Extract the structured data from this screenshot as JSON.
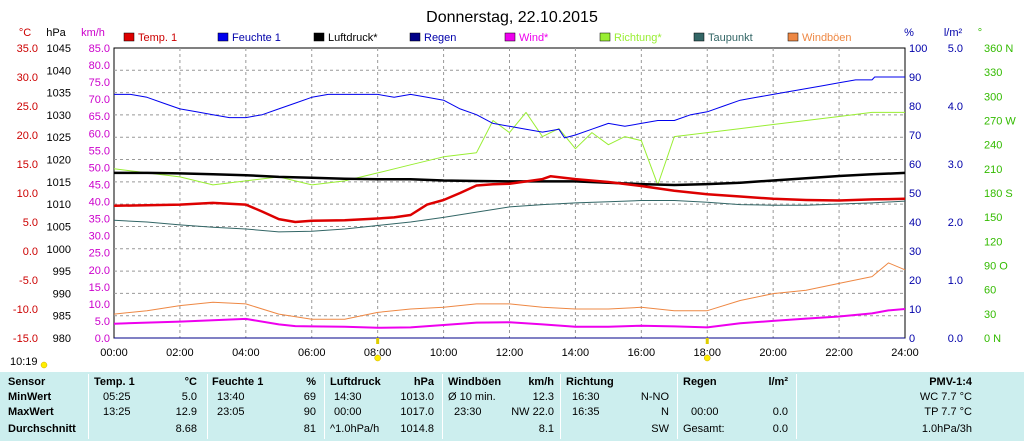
{
  "chart_data": {
    "type": "line",
    "title": "Donnerstag, 22.10.2015",
    "x_ticks": [
      "00:00",
      "02:00",
      "04:00",
      "06:00",
      "08:00",
      "10:00",
      "12:00",
      "14:00",
      "16:00",
      "18:00",
      "20:00",
      "22:00",
      "24:00"
    ],
    "xlim": [
      0,
      24
    ],
    "grid": true,
    "legend_position": "top",
    "axes": {
      "temp": {
        "unit": "°C",
        "ticks": [
          "35.0",
          "30.0",
          "25.0",
          "20.0",
          "15.0",
          "10.0",
          "5.0",
          "0.0",
          "-5.0",
          "-10.0",
          "-15.0"
        ],
        "ylim": [
          -15,
          35
        ],
        "color": "#cc0000"
      },
      "press": {
        "unit": "hPa",
        "ticks": [
          "1045",
          "1040",
          "1035",
          "1030",
          "1025",
          "1020",
          "1015",
          "1010",
          "1005",
          "1000",
          "995",
          "990",
          "985",
          "980"
        ],
        "ylim": [
          980,
          1045
        ],
        "color": "#000000"
      },
      "wind": {
        "unit": "km/h",
        "ticks": [
          "85.0",
          "80.0",
          "75.0",
          "70.0",
          "65.0",
          "60.0",
          "55.0",
          "50.0",
          "45.0",
          "40.0",
          "35.0",
          "30.0",
          "25.0",
          "20.0",
          "15.0",
          "10.0",
          "5.0",
          "0.0"
        ],
        "ylim": [
          0,
          85
        ],
        "color": "#cc00cc"
      },
      "hum": {
        "unit": "%",
        "ticks": [
          "100",
          "90",
          "80",
          "70",
          "60",
          "50",
          "40",
          "30",
          "20",
          "10",
          "0"
        ],
        "ylim": [
          0,
          100
        ],
        "color": "#0000aa"
      },
      "rain": {
        "unit": "l/m²",
        "ticks": [
          "5.0",
          "4.0",
          "3.0",
          "2.0",
          "1.0",
          "0.0"
        ],
        "ylim": [
          0,
          5
        ],
        "color": "#0000aa"
      },
      "dir": {
        "unit": "°",
        "ticks": [
          "360 N",
          "330",
          "300",
          "270 W",
          "240",
          "210",
          "180 S",
          "150",
          "120",
          "90 O",
          "60",
          "30",
          "0 N"
        ],
        "ylim": [
          0,
          360
        ],
        "color": "#33bb00"
      }
    },
    "series": [
      {
        "name": "Temp. 1",
        "axis": "temp",
        "color": "#dd0000",
        "width": 2.5,
        "x": [
          0,
          1,
          2,
          3,
          4,
          4.5,
          5,
          5.5,
          6,
          7,
          8,
          8.5,
          9,
          9.5,
          10,
          10.5,
          11,
          11.5,
          12,
          13,
          13.25,
          14,
          15,
          16,
          17,
          18,
          19,
          20,
          21,
          22,
          23,
          24
        ],
        "y": [
          7.8,
          7.9,
          8.0,
          8.3,
          8.0,
          6.8,
          5.5,
          5.0,
          5.2,
          5.3,
          5.6,
          5.8,
          6.2,
          8.0,
          8.8,
          10.0,
          11.3,
          11.5,
          11.6,
          12.4,
          12.9,
          12.4,
          11.9,
          11.2,
          10.4,
          9.8,
          9.4,
          9.0,
          8.8,
          8.7,
          8.9,
          9.0
        ]
      },
      {
        "name": "Feuchte 1",
        "axis": "hum",
        "color": "#0000ee",
        "width": 1,
        "x": [
          0,
          0.5,
          1,
          1.5,
          2,
          2.5,
          3,
          3.5,
          4,
          4.5,
          5,
          5.5,
          6,
          6.5,
          7,
          7.5,
          8,
          8.5,
          9,
          9.5,
          10,
          10.5,
          11,
          11.5,
          12,
          12.5,
          13,
          13.5,
          13.67,
          14,
          14.5,
          15,
          15.5,
          16,
          16.5,
          17,
          17.5,
          18,
          18.5,
          19,
          19.5,
          20,
          20.5,
          21,
          21.5,
          22,
          22.5,
          23,
          23.08,
          24
        ],
        "y": [
          84,
          84,
          83,
          81,
          79,
          78,
          77,
          76,
          76,
          77,
          79,
          81,
          83,
          84,
          84,
          84,
          84,
          83,
          84,
          83,
          82,
          79,
          77,
          74,
          73,
          72,
          71,
          72,
          69,
          70,
          72,
          74,
          73,
          74,
          75,
          75,
          77,
          78,
          80,
          82,
          83,
          84,
          85,
          86,
          87,
          88,
          89,
          89,
          90,
          90
        ]
      },
      {
        "name": "Luftdruck*",
        "axis": "press",
        "color": "#000000",
        "width": 2.5,
        "x": [
          0,
          1,
          2,
          3,
          4,
          5,
          6,
          7,
          8,
          9,
          10,
          11,
          12,
          13,
          14,
          15,
          16,
          17,
          18,
          19,
          20,
          21,
          22,
          23,
          24
        ],
        "y": [
          1017.0,
          1017.0,
          1016.9,
          1016.7,
          1016.5,
          1016.1,
          1015.9,
          1015.7,
          1015.6,
          1015.6,
          1015.3,
          1015.2,
          1015.1,
          1015.1,
          1015.1,
          1014.8,
          1014.5,
          1014.3,
          1014.5,
          1014.8,
          1015.3,
          1015.8,
          1016.3,
          1016.7,
          1017.0
        ]
      },
      {
        "name": "Regen",
        "axis": "rain",
        "color": "#000088",
        "width": 1,
        "x": [
          0,
          24
        ],
        "y": [
          0,
          0
        ]
      },
      {
        "name": "Wind*",
        "axis": "wind",
        "color": "#ee00ee",
        "width": 2,
        "x": [
          0,
          1,
          2,
          3,
          4,
          5,
          5.5,
          6,
          7,
          8,
          9,
          10,
          11,
          12,
          13,
          14,
          15,
          16,
          17,
          18,
          19,
          20,
          21,
          22,
          23,
          23.5,
          24
        ],
        "y": [
          4.2,
          4.5,
          4.8,
          5.2,
          5.6,
          4.0,
          3.5,
          3.4,
          3.3,
          3.0,
          3.1,
          3.8,
          4.5,
          4.6,
          4.0,
          3.3,
          3.3,
          3.6,
          3.4,
          3.1,
          4.3,
          5.0,
          5.7,
          6.3,
          7.2,
          8.1,
          8.5
        ]
      },
      {
        "name": "Richtung*",
        "axis": "dir",
        "color": "#99ee33",
        "width": 1,
        "x": [
          0,
          1,
          2,
          3,
          4,
          5,
          6,
          7,
          8,
          9,
          10,
          11,
          11.5,
          12,
          12.5,
          13,
          13.5,
          14,
          14.5,
          15,
          15.5,
          16,
          16.5,
          17,
          18,
          19,
          20,
          21,
          22,
          23,
          24
        ],
        "y": [
          210,
          205,
          200,
          190,
          195,
          200,
          190,
          195,
          205,
          215,
          225,
          230,
          270,
          255,
          280,
          250,
          260,
          235,
          255,
          240,
          250,
          245,
          190,
          250,
          255,
          260,
          265,
          270,
          275,
          280,
          280
        ]
      },
      {
        "name": "Taupunkt",
        "axis": "temp",
        "color": "#336666",
        "width": 1,
        "x": [
          0,
          1,
          2,
          3,
          4,
          5,
          6,
          7,
          8,
          9,
          10,
          11,
          12,
          13,
          14,
          15,
          16,
          17,
          18,
          19,
          20,
          21,
          22,
          23,
          24
        ],
        "y": [
          5.3,
          5.0,
          4.5,
          4.1,
          3.8,
          3.3,
          3.4,
          3.8,
          4.4,
          5.0,
          5.8,
          6.7,
          7.6,
          8.0,
          8.3,
          8.5,
          8.7,
          8.7,
          8.4,
          8.0,
          7.9,
          7.9,
          8.1,
          8.3,
          8.6
        ]
      },
      {
        "name": "Windböen",
        "axis": "wind",
        "color": "#ee8844",
        "width": 1,
        "x": [
          0,
          1,
          2,
          3,
          4,
          5,
          6,
          7,
          8,
          9,
          10,
          11,
          12,
          13,
          14,
          15,
          16,
          17,
          18,
          19,
          20,
          21,
          22,
          23,
          23.5,
          24
        ],
        "y": [
          7.0,
          8.0,
          9.5,
          10.5,
          10.0,
          7.0,
          5.5,
          5.5,
          7.5,
          8.5,
          9.0,
          10.0,
          10.0,
          9.0,
          8.5,
          8.5,
          9.0,
          8.0,
          8.0,
          11.0,
          13.0,
          14.0,
          16.0,
          18.0,
          22.0,
          20.0
        ]
      }
    ],
    "rain_markers": [
      "08:00",
      "18:00"
    ]
  },
  "time_label": "10:19",
  "summary": {
    "labels": {
      "sensor": "Sensor",
      "min": "MinWert",
      "max": "MaxWert",
      "avg": "Durchschnitt"
    },
    "temp": {
      "title": "Temp. 1",
      "unit": "°C",
      "min_time": "05:25",
      "min_val": "5.0",
      "max_time": "13:25",
      "max_val": "12.9",
      "avg_val": "8.68"
    },
    "hum": {
      "title": "Feuchte 1",
      "unit": "%",
      "min_time": "13:40",
      "min_val": "69",
      "max_time": "23:05",
      "max_val": "90",
      "avg_val": "81"
    },
    "press": {
      "title": "Luftdruck",
      "unit": "hPa",
      "min_time": "14:30",
      "min_val": "1013.0",
      "max_time": "00:00",
      "max_val": "1017.0",
      "avg_time": "^1.0hPa/h",
      "avg_val": "1014.8"
    },
    "gust": {
      "title": "Windböen",
      "unit": "km/h",
      "min_label": "Ø 10 min.",
      "min_val": "12.3",
      "max_time": "23:30",
      "max_val": "NW 22.0",
      "avg_val": "8.1"
    },
    "dir": {
      "title": "Richtung",
      "min_time": "16:30",
      "min_val": "N-NO",
      "max_time": "16:35",
      "max_val": "N",
      "avg_val": "SW"
    },
    "rain": {
      "title": "Regen",
      "unit": "l/m²",
      "max_time": "00:00",
      "max_val": "0.0",
      "avg_label": "Gesamt:",
      "avg_val": "0.0"
    },
    "pmv": {
      "title": "PMV-1:4",
      "wc": "WC 7.7 °C",
      "tp": "TP 7.7 °C",
      "tend": "1.0hPa/3h"
    }
  }
}
